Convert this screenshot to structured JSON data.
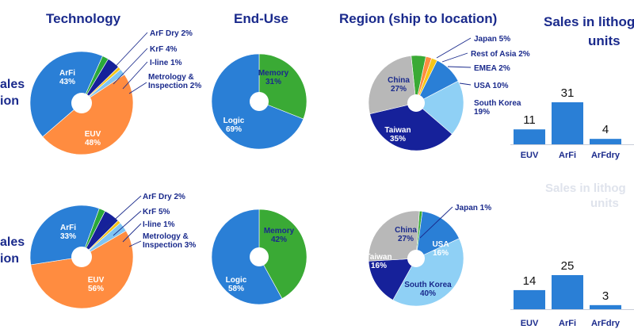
{
  "headings": {
    "technology": "Technology",
    "enduse": "End-Use",
    "region": "Region (ship to location)",
    "sales_line1": "Sales in lithog",
    "sales_line2": "units",
    "sales2_line1": "Sales in lithog",
    "sales2_line2": "units"
  },
  "row_labels": {
    "row1_line1": "ales",
    "row1_line2": "ion",
    "row2_line1": "ales",
    "row2_line2": "ion"
  },
  "colors": {
    "arfi": "#2a7fd6",
    "euv": "#ff8c40",
    "arf_dry": "#2aa83a",
    "krf": "#16219a",
    "iline": "#f5c518",
    "metrology": "#7fc4f2",
    "memory": "#3aaa35",
    "logic": "#2a7fd6",
    "china": "#b8b8b8",
    "japan": "#3aaa35",
    "rest_of_asia": "#ff8c40",
    "emea": "#f5c518",
    "usa": "#2a7fd6",
    "south_korea": "#8fd0f5",
    "taiwan": "#16219a",
    "bar": "#2a7fd6",
    "text_dark": "#1a2a8c",
    "leader": "#1a2a8c"
  },
  "chart_data": [
    {
      "id": "tech-top",
      "type": "pie",
      "title": "Technology",
      "slices": [
        {
          "name": "ArF Dry",
          "value": 2,
          "label": "ArF Dry 2%",
          "color_key": "arf_dry"
        },
        {
          "name": "KrF",
          "value": 4,
          "label": "KrF 4%",
          "color_key": "krf"
        },
        {
          "name": "I-line",
          "value": 1,
          "label": "I-line 1%",
          "color_key": "iline"
        },
        {
          "name": "Metrology & Inspection",
          "value": 2,
          "label": "Metrology & Inspection 2%",
          "color_key": "metrology"
        },
        {
          "name": "EUV",
          "value": 48,
          "label": "EUV 48%",
          "color_key": "euv"
        },
        {
          "name": "ArFi",
          "value": 43,
          "label": "ArFi 43%",
          "color_key": "arfi"
        }
      ]
    },
    {
      "id": "enduse-top",
      "type": "pie",
      "title": "End-Use",
      "slices": [
        {
          "name": "Memory",
          "value": 31,
          "label": "Memory 31%",
          "color_key": "memory"
        },
        {
          "name": "Logic",
          "value": 69,
          "label": "Logic 69%",
          "color_key": "logic"
        }
      ]
    },
    {
      "id": "region-top",
      "type": "pie",
      "title": "Region (ship to location)",
      "slices": [
        {
          "name": "Japan",
          "value": 5,
          "label": "Japan 5%",
          "color_key": "japan"
        },
        {
          "name": "Rest of Asia",
          "value": 2,
          "label": "Rest of Asia 2%",
          "color_key": "rest_of_asia"
        },
        {
          "name": "EMEA",
          "value": 2,
          "label": "EMEA 2%",
          "color_key": "emea"
        },
        {
          "name": "USA",
          "value": 10,
          "label": "USA 10%",
          "color_key": "usa"
        },
        {
          "name": "South Korea",
          "value": 19,
          "label": "South Korea 19%",
          "color_key": "south_korea"
        },
        {
          "name": "Taiwan",
          "value": 35,
          "label": "Taiwan 35%",
          "color_key": "taiwan"
        },
        {
          "name": "China",
          "value": 27,
          "label": "China 27%",
          "color_key": "china"
        }
      ]
    },
    {
      "id": "units-top",
      "type": "bar",
      "title": "Sales in lithog units",
      "categories": [
        "EUV",
        "ArFi",
        "ArFdry"
      ],
      "values": [
        11,
        31,
        4
      ]
    },
    {
      "id": "tech-bottom",
      "type": "pie",
      "slices": [
        {
          "name": "ArF Dry",
          "value": 2,
          "label": "ArF Dry 2%",
          "color_key": "arf_dry"
        },
        {
          "name": "KrF",
          "value": 5,
          "label": "KrF 5%",
          "color_key": "krf"
        },
        {
          "name": "I-line",
          "value": 1,
          "label": "I-line 1%",
          "color_key": "iline"
        },
        {
          "name": "Metrology & Inspection",
          "value": 3,
          "label": "Metrology & Inspection 3%",
          "color_key": "metrology"
        },
        {
          "name": "EUV",
          "value": 56,
          "label": "EUV 56%",
          "color_key": "euv"
        },
        {
          "name": "ArFi",
          "value": 33,
          "label": "ArFi 33%",
          "color_key": "arfi"
        }
      ]
    },
    {
      "id": "enduse-bottom",
      "type": "pie",
      "slices": [
        {
          "name": "Memory",
          "value": 42,
          "label": "Memory 42%",
          "color_key": "memory"
        },
        {
          "name": "Logic",
          "value": 58,
          "label": "Logic 58%",
          "color_key": "logic"
        }
      ]
    },
    {
      "id": "region-bottom",
      "type": "pie",
      "slices": [
        {
          "name": "Japan",
          "value": 1,
          "label": "Japan 1%",
          "color_key": "japan"
        },
        {
          "name": "USA",
          "value": 16,
          "label": "USA 16%",
          "color_key": "usa"
        },
        {
          "name": "South Korea",
          "value": 40,
          "label": "South Korea 40%",
          "color_key": "south_korea"
        },
        {
          "name": "Taiwan",
          "value": 16,
          "label": "Taiwan 16%",
          "color_key": "taiwan"
        },
        {
          "name": "China",
          "value": 27,
          "label": "China 27%",
          "color_key": "china"
        }
      ]
    },
    {
      "id": "units-bottom",
      "type": "bar",
      "title": "Sales in lithog units",
      "categories": [
        "EUV",
        "ArFi",
        "ArFdry"
      ],
      "values": [
        14,
        25,
        3
      ]
    }
  ]
}
